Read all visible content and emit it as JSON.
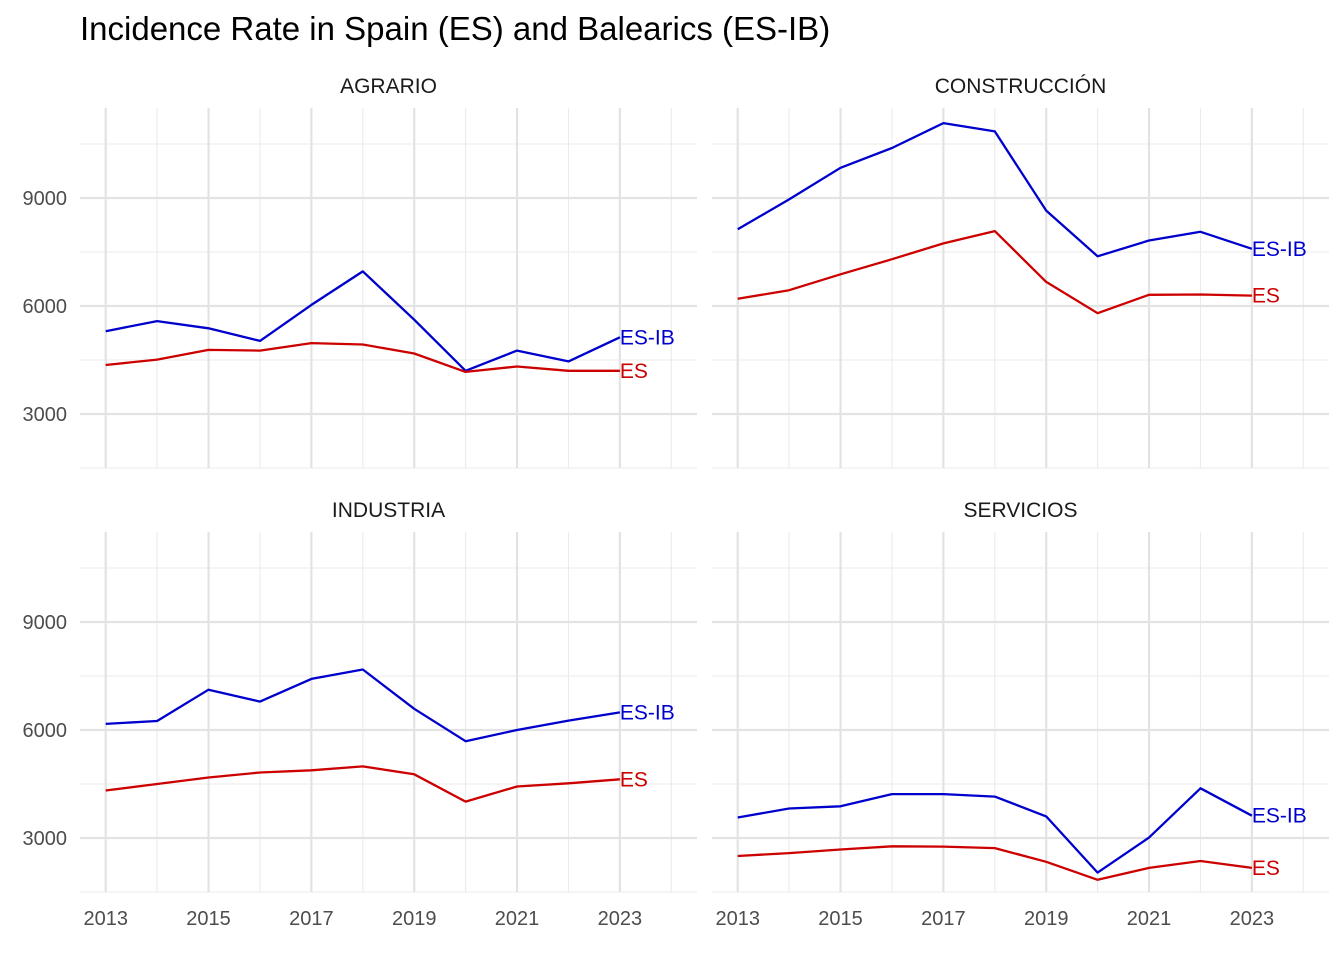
{
  "chart_data": {
    "type": "line",
    "title": "Incidence Rate in Spain (ES) and Balearics (ES-IB)",
    "xlabel": "",
    "ylabel": "",
    "x": [
      2013,
      2014,
      2015,
      2016,
      2017,
      2018,
      2019,
      2020,
      2021,
      2022,
      2023
    ],
    "x_ticks": [
      "2013",
      "2015",
      "2017",
      "2019",
      "2021",
      "2023"
    ],
    "y_ticks": [
      "3000",
      "6000",
      "9000"
    ],
    "xlim": [
      2012.5,
      2024.5
    ],
    "ylim": [
      1500,
      11500
    ],
    "grid": true,
    "legend": "direct labels at line ends",
    "colors": {
      "ES-IB": "#0000CD",
      "ES": "#CD0000"
    },
    "panels": [
      {
        "name": "AGRARIO",
        "series": [
          {
            "name": "ES-IB",
            "values": [
              5300,
              5580,
              5380,
              5030,
              6030,
              6960,
              5620,
              4200,
              4760,
              4460,
              5130
            ]
          },
          {
            "name": "ES",
            "values": [
              4360,
              4510,
              4780,
              4760,
              4970,
              4930,
              4680,
              4170,
              4320,
              4200,
              4200
            ]
          }
        ]
      },
      {
        "name": "CONSTRUCCIÓN",
        "series": [
          {
            "name": "ES-IB",
            "values": [
              8130,
              8960,
              9840,
              10390,
              11080,
              10850,
              8650,
              7380,
              7820,
              8060,
              7590
            ]
          },
          {
            "name": "ES",
            "values": [
              6200,
              6440,
              6880,
              7300,
              7740,
              8080,
              6670,
              5800,
              6310,
              6320,
              6290
            ]
          }
        ]
      },
      {
        "name": "INDUSTRIA",
        "series": [
          {
            "name": "ES-IB",
            "values": [
              6170,
              6250,
              7120,
              6790,
              7420,
              7680,
              6590,
              5690,
              6000,
              6260,
              6490
            ]
          },
          {
            "name": "ES",
            "values": [
              4320,
              4500,
              4680,
              4820,
              4880,
              4990,
              4770,
              4010,
              4430,
              4520,
              4630
            ]
          }
        ]
      },
      {
        "name": "SERVICIOS",
        "series": [
          {
            "name": "ES-IB",
            "values": [
              3570,
              3820,
              3880,
              4220,
              4220,
              4150,
              3600,
              2040,
              3010,
              4380,
              3620
            ]
          },
          {
            "name": "ES",
            "values": [
              2500,
              2580,
              2680,
              2770,
              2760,
              2720,
              2340,
              1840,
              2170,
              2360,
              2170
            ]
          }
        ]
      }
    ]
  }
}
